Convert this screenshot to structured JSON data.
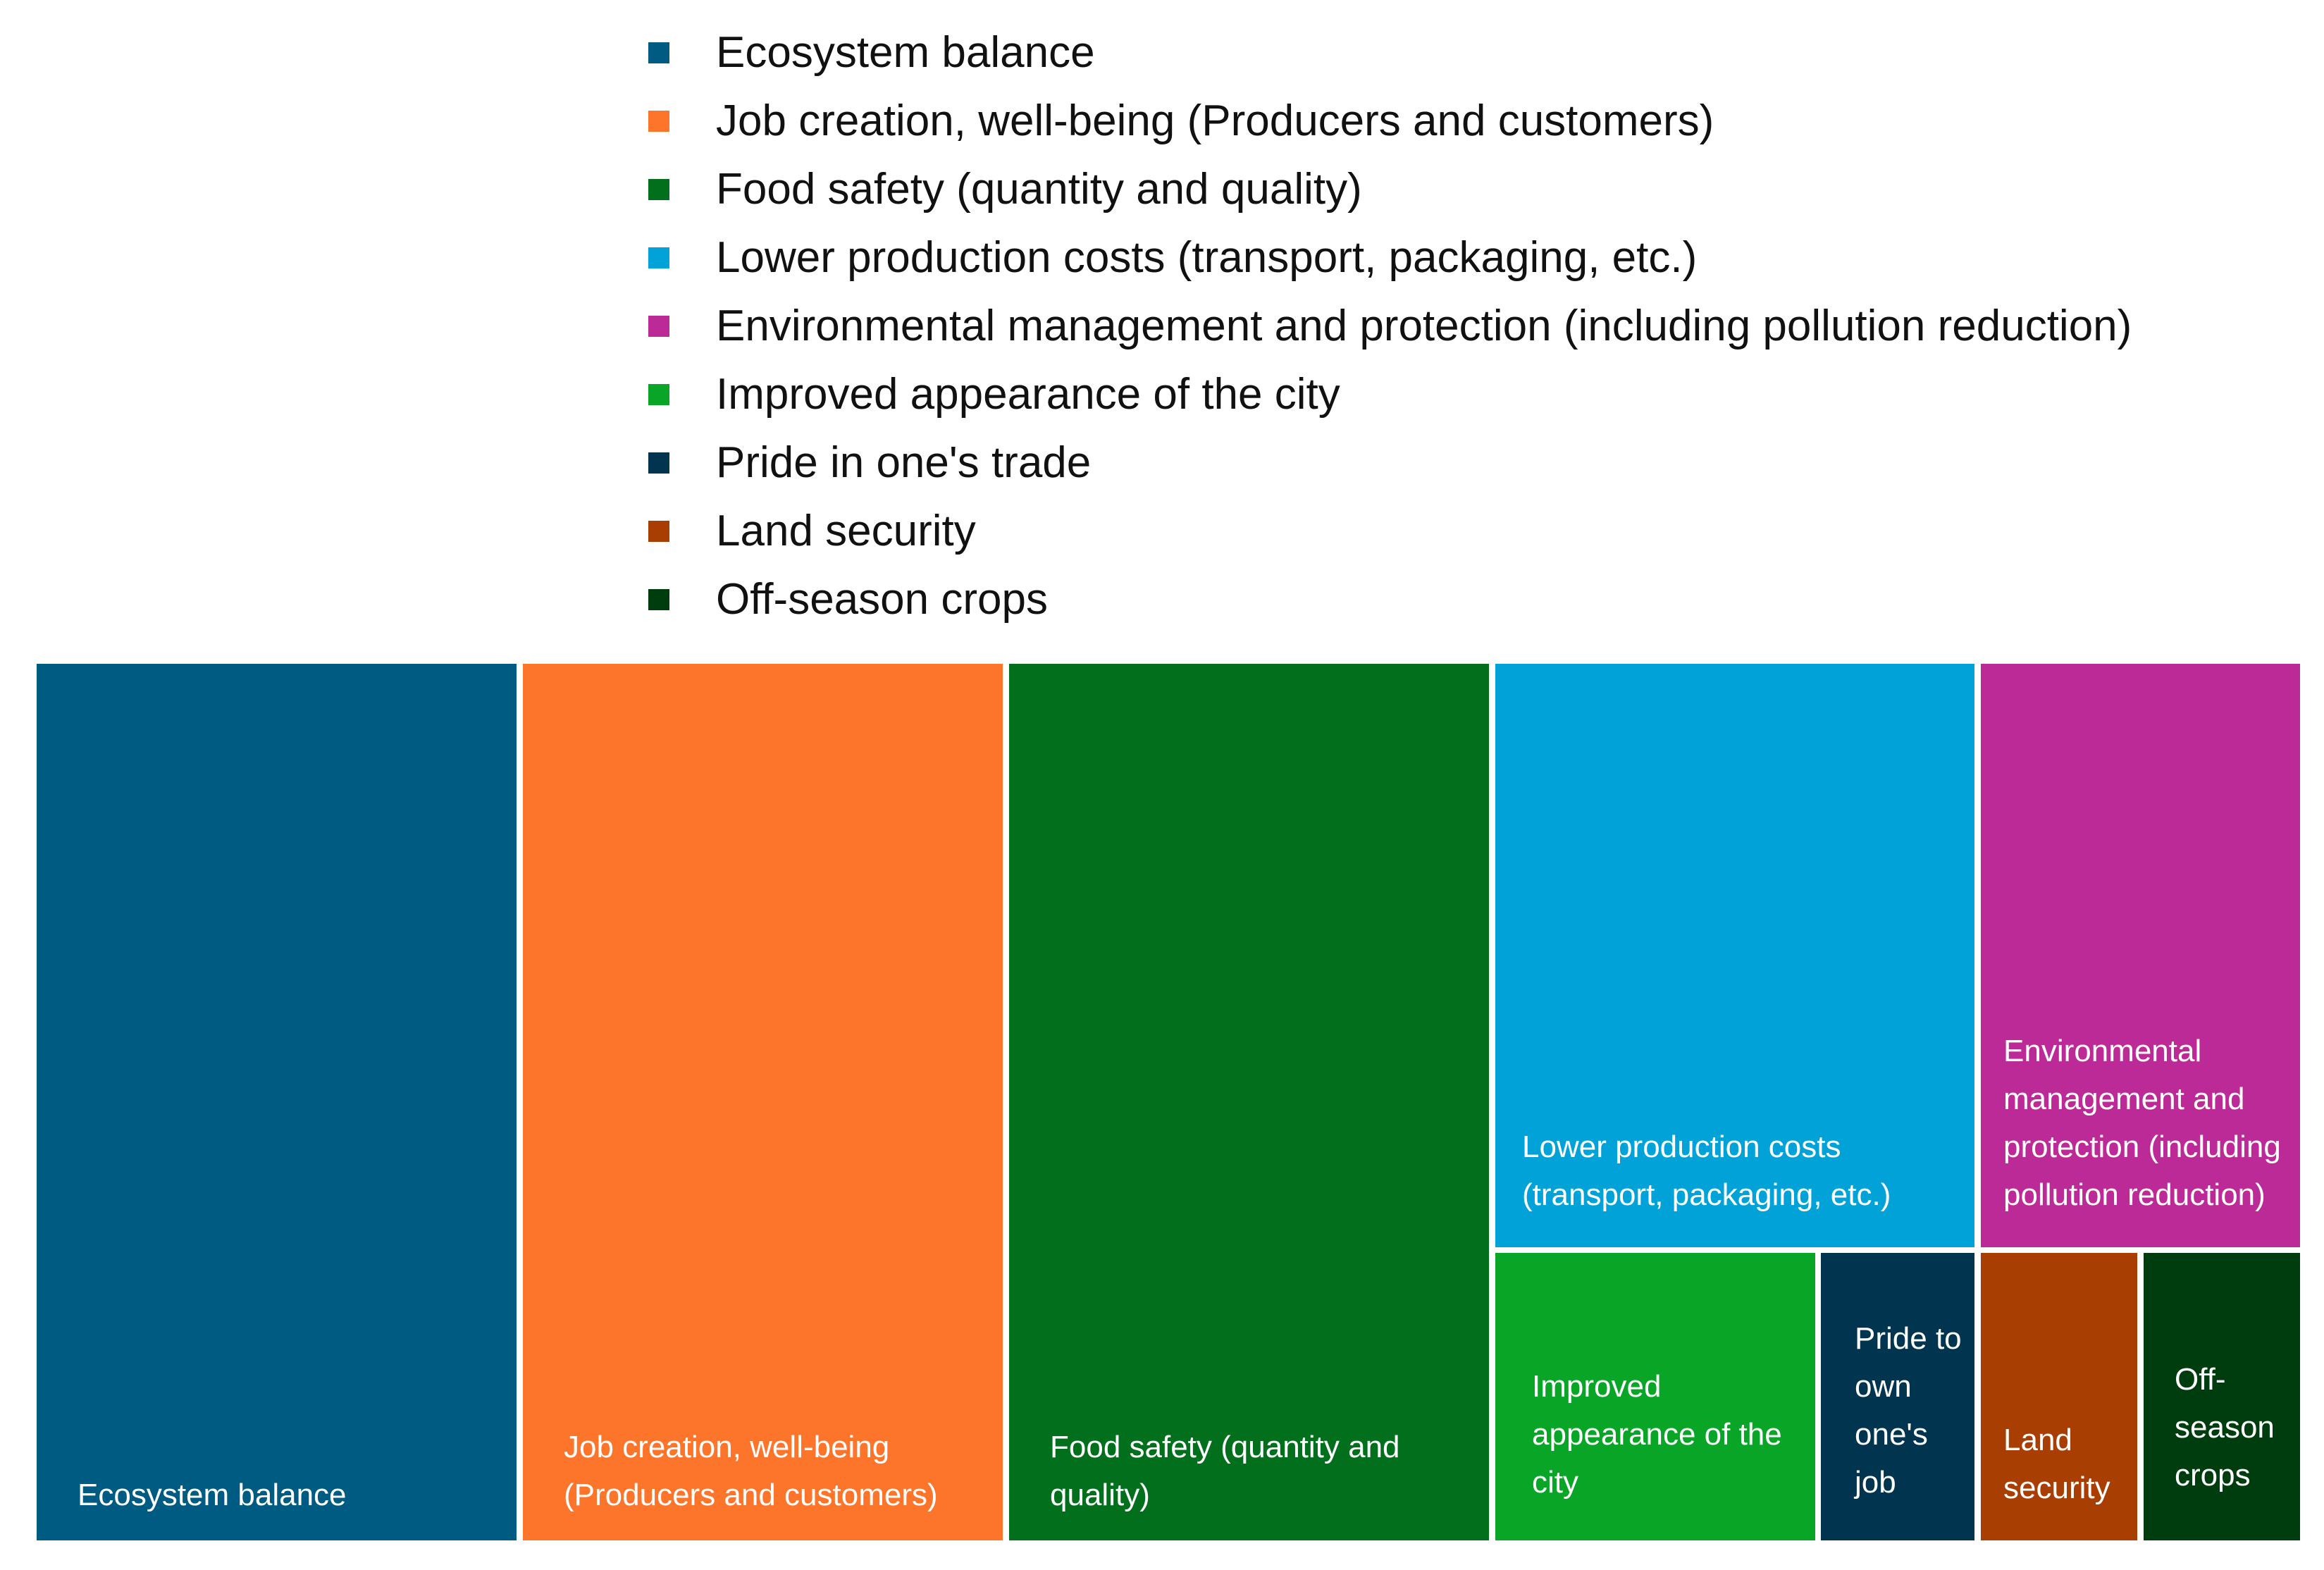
{
  "chart_data": {
    "type": "treemap",
    "title": "",
    "legend_position": "top",
    "series": [
      {
        "name": "Ecosystem balance",
        "label": "Ecosystem balance",
        "color": "#005b82",
        "value": 22
      },
      {
        "name": "Job creation, well-being (Producers and customers)",
        "label": "Job creation, well-being (Producers and customers)",
        "color": "#fd742b",
        "value": 22
      },
      {
        "name": "Food safety (quantity and quality)",
        "label": "Food safety (quantity and quality)",
        "color": "#026f1c",
        "value": 22
      },
      {
        "name": "Lower production costs (transport, packaging, etc.)",
        "label": "Lower production costs (transport, packaging, etc.)",
        "color": "#00a2d7",
        "value": 14.6
      },
      {
        "name": "Environmental management and protection (including pollution reduction)",
        "label": "Environmental management and protection (including pollution reduction)",
        "color": "#bb2a96",
        "value": 9.6
      },
      {
        "name": "Improved appearance of the city",
        "label": "Improved appearance of the city",
        "color": "#08a527",
        "value": 5.3
      },
      {
        "name": "Pride in one's trade",
        "label": "Pride to own one's job",
        "color": "#00344f",
        "value": 2.7
      },
      {
        "name": "Land security",
        "label": "Land security",
        "color": "#a83e02",
        "value": 2.7
      },
      {
        "name": "Off-season crops",
        "label": "Off-season crops",
        "color": "#003d0e",
        "value": 2.5
      }
    ]
  }
}
